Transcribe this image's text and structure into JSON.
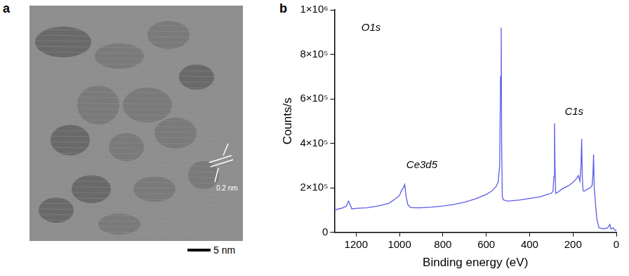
{
  "panel_labels": [
    "a",
    "b"
  ],
  "image": {
    "annotation": "0.2 nm",
    "scale_bar": "5 nm"
  },
  "chart_data": {
    "type": "line",
    "x_label": "Binding energy (eV)",
    "y_label": "Counts/s",
    "annotations": [
      "Ce3d5",
      "O1s",
      "C1s"
    ],
    "color": "#5b5be6",
    "grid": false,
    "xlim": [
      1300,
      0
    ],
    "xticks": [
      1200,
      1000,
      800,
      600,
      400,
      200,
      0
    ],
    "ylim": [
      0,
      1000000
    ],
    "yticks": [
      0,
      {
        "value": 200000,
        "label": "2×10⁵"
      },
      {
        "value": 400000,
        "label": "4×10⁵"
      },
      {
        "value": 600000,
        "label": "6×10⁵"
      },
      {
        "value": 800000,
        "label": "8×10⁵"
      },
      {
        "value": 1000000,
        "label": "1×10⁶"
      }
    ],
    "x": [
      1300,
      1280,
      1260,
      1245,
      1235,
      1228,
      1220,
      1200,
      1150,
      1100,
      1050,
      1020,
      1000,
      990,
      982,
      976,
      970,
      962,
      950,
      930,
      900,
      850,
      800,
      750,
      700,
      650,
      600,
      575,
      555,
      545,
      538,
      534,
      531,
      529,
      526,
      520,
      500,
      450,
      400,
      350,
      320,
      300,
      292,
      288,
      285,
      283,
      280,
      270,
      250,
      220,
      200,
      185,
      175,
      168,
      163,
      160,
      157,
      154,
      150,
      140,
      130,
      120,
      112,
      108,
      105,
      102,
      98,
      90,
      80,
      60,
      40,
      30,
      25,
      15,
      5,
      0
    ],
    "values": [
      100000,
      105000,
      110000,
      118000,
      140000,
      125000,
      105000,
      108000,
      110000,
      118000,
      130000,
      150000,
      165000,
      190000,
      200000,
      215000,
      165000,
      125000,
      112000,
      110000,
      110000,
      113000,
      118000,
      125000,
      135000,
      150000,
      170000,
      185000,
      205000,
      225000,
      300000,
      700000,
      920000,
      400000,
      160000,
      145000,
      140000,
      145000,
      152000,
      160000,
      170000,
      175000,
      185000,
      250000,
      490000,
      300000,
      175000,
      180000,
      195000,
      210000,
      225000,
      240000,
      255000,
      230000,
      300000,
      420000,
      250000,
      190000,
      185000,
      190000,
      195000,
      200000,
      210000,
      260000,
      350000,
      200000,
      150000,
      60000,
      20000,
      15000,
      20000,
      35000,
      15000,
      20000,
      8000,
      10000
    ]
  }
}
